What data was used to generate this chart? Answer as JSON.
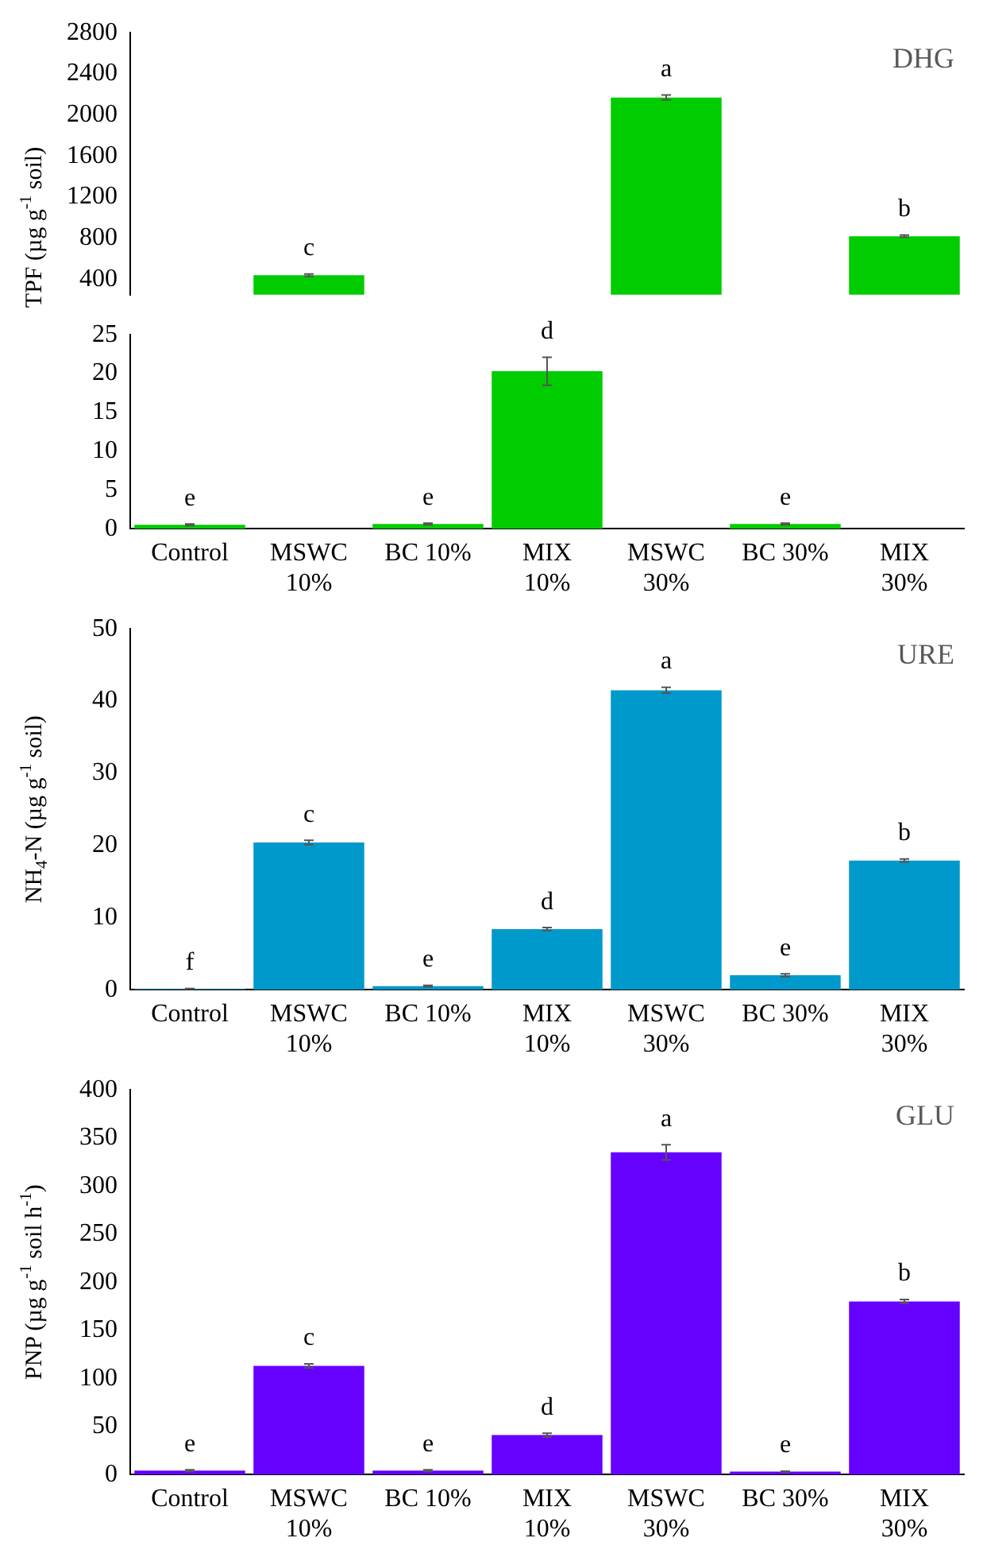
{
  "chart_data": [
    {
      "type": "bar",
      "title": "DHG",
      "ylabel": "TPF (µg g$^{-1}$ soil)",
      "categories": [
        "Control",
        "MSWC\n10%",
        "BC 10%",
        "MIX\n10%",
        "MSWC\n30%",
        "BC 30%",
        "MIX\n30%"
      ],
      "values": [
        null,
        440,
        null,
        null,
        2170,
        null,
        820
      ],
      "errors": [
        null,
        12,
        null,
        null,
        25,
        null,
        10
      ],
      "color": "#00cc00",
      "ylim": [
        250,
        2800
      ],
      "yticks": [
        400,
        800,
        1200,
        1600,
        2000,
        2400,
        2800
      ],
      "grid": false,
      "legend": false,
      "tick_labels": "y",
      "annotations": [
        {
          "text": "c",
          "x": "MSWC\n10%",
          "y": 440
        },
        {
          "text": "a",
          "x": "MSWC\n30%",
          "y": 2170
        },
        {
          "text": "b",
          "x": "MIX\n30%",
          "y": 820
        }
      ]
    },
    {
      "type": "bar",
      "categories": [
        "Control",
        "MSWC\n10%",
        "BC 10%",
        "MIX\n10%",
        "MSWC\n30%",
        "BC 30%",
        "MIX\n30%"
      ],
      "values": [
        0.5,
        null,
        0.6,
        20.3,
        null,
        0.6,
        null
      ],
      "errors": [
        0.1,
        null,
        0.1,
        1.8,
        null,
        0.1,
        null
      ],
      "color": "#00cc00",
      "ylim": [
        0,
        25
      ],
      "yticks": [
        0,
        5,
        10,
        15,
        20,
        25
      ],
      "grid": false,
      "legend": false,
      "annotations": [
        {
          "text": "e",
          "x": "Control",
          "y": 0.5
        },
        {
          "text": "e",
          "x": "BC 10%",
          "y": 0.6
        },
        {
          "text": "d",
          "x": "MIX\n10%",
          "y": 20.3
        },
        {
          "text": "e",
          "x": "BC 30%",
          "y": 0.6
        }
      ]
    },
    {
      "type": "bar",
      "title": "URE",
      "ylabel": "NH$_{4}$-N (µg g$^{-1}$ soil)",
      "categories": [
        "Control",
        "MSWC\n10%",
        "BC 10%",
        "MIX\n10%",
        "MSWC\n30%",
        "BC 30%",
        "MIX\n30%"
      ],
      "values": [
        0.1,
        20.4,
        0.5,
        8.4,
        41.5,
        2.0,
        17.9
      ],
      "errors": [
        0.05,
        0.3,
        0.1,
        0.2,
        0.4,
        0.2,
        0.2
      ],
      "color": "#0099cc",
      "ylim": [
        0,
        50
      ],
      "yticks": [
        0,
        10,
        20,
        30,
        40,
        50
      ],
      "grid": false,
      "legend": false,
      "annotations": [
        {
          "text": "f",
          "x": "Control",
          "y": 0.1
        },
        {
          "text": "c",
          "x": "MSWC\n10%",
          "y": 20.4
        },
        {
          "text": "e",
          "x": "BC 10%",
          "y": 0.5
        },
        {
          "text": "d",
          "x": "MIX\n10%",
          "y": 8.4
        },
        {
          "text": "a",
          "x": "MSWC\n30%",
          "y": 41.5
        },
        {
          "text": "e",
          "x": "BC 30%",
          "y": 2.0
        },
        {
          "text": "b",
          "x": "MIX\n30%",
          "y": 17.9
        }
      ]
    },
    {
      "type": "bar",
      "title": "GLU",
      "ylabel": "PNP (µg g$^{-1}$ soil h$^{-1}$)",
      "categories": [
        "Control",
        "MSWC\n10%",
        "BC 10%",
        "MIX\n10%",
        "MSWC\n30%",
        "BC 30%",
        "MIX\n30%"
      ],
      "values": [
        4,
        113,
        4,
        41,
        335,
        3,
        180
      ],
      "errors": [
        1,
        2,
        1,
        2,
        8,
        0.5,
        2
      ],
      "color": "#6600ff",
      "ylim": [
        0,
        400
      ],
      "yticks": [
        0,
        50,
        100,
        150,
        200,
        250,
        300,
        350,
        400
      ],
      "grid": false,
      "legend": false,
      "annotations": [
        {
          "text": "e",
          "x": "Control",
          "y": 4
        },
        {
          "text": "c",
          "x": "MSWC\n10%",
          "y": 113
        },
        {
          "text": "e",
          "x": "BC 10%",
          "y": 4
        },
        {
          "text": "d",
          "x": "MIX\n10%",
          "y": 41
        },
        {
          "text": "a",
          "x": "MSWC\n30%",
          "y": 335
        },
        {
          "text": "e",
          "x": "BC 30%",
          "y": 3
        },
        {
          "text": "b",
          "x": "MIX\n30%",
          "y": 180
        }
      ]
    }
  ]
}
